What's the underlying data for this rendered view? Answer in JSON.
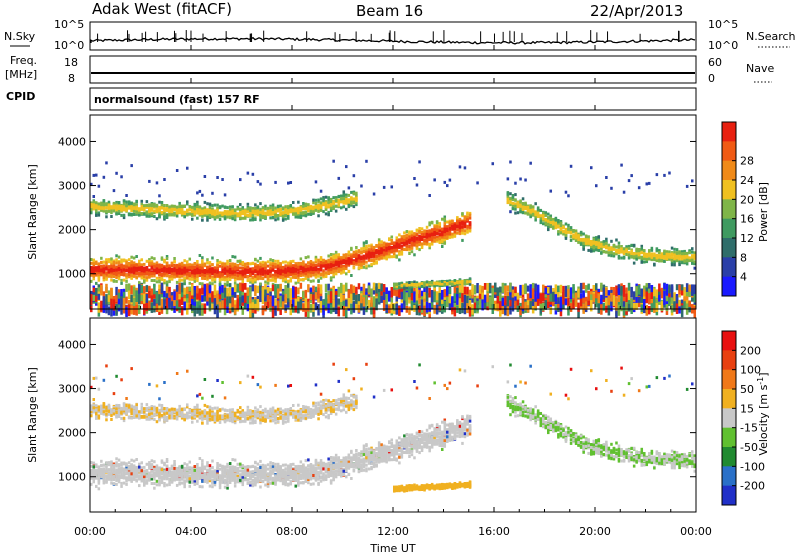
{
  "header": {
    "station": "Adak West (fitACF)",
    "beam": "Beam 16",
    "date": "22/Apr/2013"
  },
  "top_panels": {
    "nsky_label": "N.Sky",
    "nsearch_label": "N.Search",
    "nsky_ticks": [
      "10^5",
      "10^0"
    ],
    "nsearch_ticks": [
      "10^5",
      "10^0"
    ],
    "freq_label_1": "Freq.",
    "freq_label_2": "[MHz]",
    "freq_ticks": [
      "18",
      "8"
    ],
    "nave_label": "Nave",
    "nave_ticks": [
      "60",
      "0"
    ],
    "cpid_label": "CPID",
    "cpid_text": "normalsound (fast) 157 RF"
  },
  "chart_data": [
    {
      "type": "heatmap",
      "panel": "power",
      "xlabel": "",
      "ylabel": "Slant Range [km]",
      "x_unit": "hours UT",
      "xlim": [
        0,
        24
      ],
      "ylim": [
        200,
        4600
      ],
      "yticks": [
        1000,
        2000,
        3000,
        4000
      ],
      "colorbar": {
        "label": "Power [dB]",
        "ticks": [
          "4",
          "8",
          "12",
          "16",
          "20",
          "24",
          "28"
        ],
        "colors": [
          "#1a1aff",
          "#2a3fa8",
          "#2f6d6a",
          "#3f9a60",
          "#7fb548",
          "#f0c020",
          "#f08a18",
          "#f05a14",
          "#e82010"
        ]
      },
      "echo_bands": [
        {
          "desc": "E/F lower band",
          "x": [
            0,
            2,
            4,
            6,
            8,
            9.5,
            11,
            12.5,
            14,
            15
          ],
          "y": [
            1120,
            1120,
            1100,
            1080,
            1100,
            1200,
            1450,
            1750,
            2000,
            2200
          ]
        },
        {
          "desc": "upper band",
          "x": [
            0,
            2,
            4,
            6,
            8,
            9.5,
            10.5
          ],
          "y": [
            2550,
            2500,
            2450,
            2400,
            2450,
            2600,
            2750
          ]
        },
        {
          "desc": "morning rise",
          "x": [
            16.5,
            17.5,
            18.5,
            19.5,
            20.5,
            22,
            24
          ],
          "y": [
            2700,
            2450,
            2100,
            1800,
            1600,
            1450,
            1400
          ]
        },
        {
          "desc": "low patch",
          "x": [
            12,
            13,
            14,
            15
          ],
          "y": [
            760,
            790,
            820,
            850
          ]
        }
      ]
    },
    {
      "type": "heatmap",
      "panel": "velocity",
      "xlabel": "Time UT",
      "ylabel": "Slant Range [km]",
      "x_unit": "hours UT",
      "xlim": [
        0,
        24
      ],
      "ylim": [
        200,
        4600
      ],
      "yticks": [
        1000,
        2000,
        3000,
        4000
      ],
      "xticks": [
        "00:00",
        "04:00",
        "08:00",
        "12:00",
        "16:00",
        "20:00",
        "00:00"
      ],
      "colorbar": {
        "label": "Velocity [m s^-1]",
        "ticks": [
          "200",
          "100",
          "50",
          "15",
          "-15",
          "-50",
          "-100",
          "-200"
        ],
        "colors": [
          "#2030c8",
          "#2a70c8",
          "#208a30",
          "#60c030",
          "#c8c8c8",
          "#f0b020",
          "#f07818",
          "#e84010",
          "#e81010"
        ]
      }
    }
  ]
}
